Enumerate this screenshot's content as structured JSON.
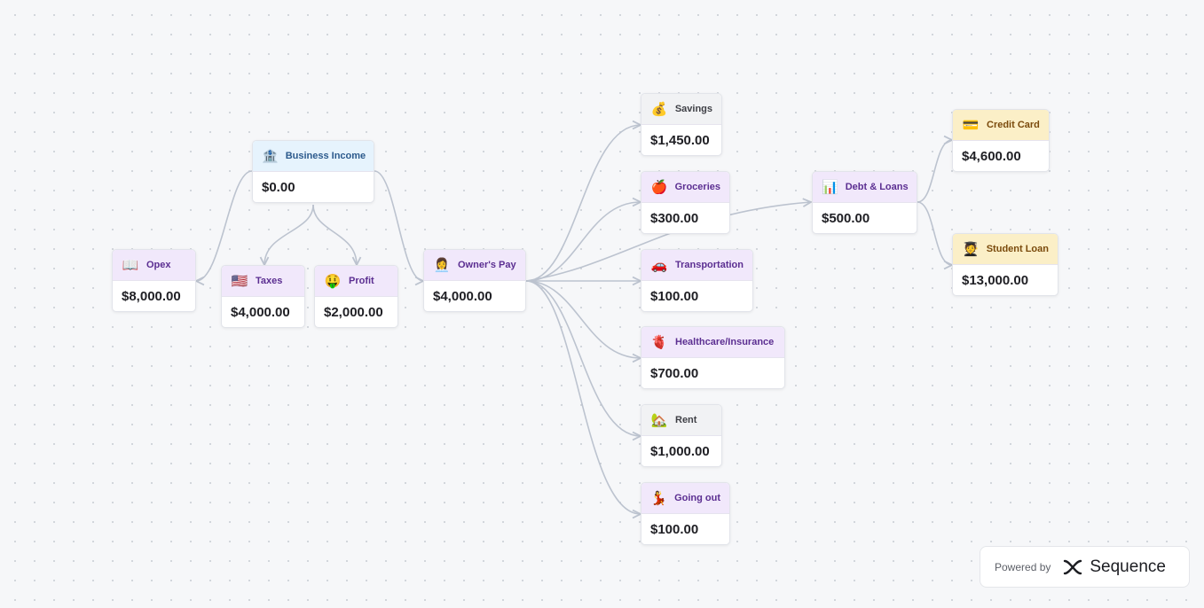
{
  "nodes": {
    "business_income": {
      "icon": "🏦",
      "label": "Business Income",
      "value": "$0.00"
    },
    "opex": {
      "icon": "📖",
      "label": "Opex",
      "value": "$8,000.00"
    },
    "taxes": {
      "icon": "🇺🇸",
      "label": "Taxes",
      "value": "$4,000.00"
    },
    "profit": {
      "icon": "🤑",
      "label": "Profit",
      "value": "$2,000.00"
    },
    "owners_pay": {
      "icon": "👩‍💼",
      "label": "Owner's Pay",
      "value": "$4,000.00"
    },
    "savings": {
      "icon": "💰",
      "label": "Savings",
      "value": "$1,450.00"
    },
    "groceries": {
      "icon": "🍎",
      "label": "Groceries",
      "value": "$300.00"
    },
    "transportation": {
      "icon": "🚗",
      "label": "Transportation",
      "value": "$100.00"
    },
    "healthcare": {
      "icon": "🫀",
      "label": "Healthcare/Insurance",
      "value": "$700.00"
    },
    "rent": {
      "icon": "🏡",
      "label": "Rent",
      "value": "$1,000.00"
    },
    "going_out": {
      "icon": "💃",
      "label": "Going out",
      "value": "$100.00"
    },
    "debt_loans": {
      "icon": "📊",
      "label": "Debt & Loans",
      "value": "$500.00"
    },
    "credit_card": {
      "icon": "💳",
      "label": "Credit Card",
      "value": "$4,600.00"
    },
    "student_loan": {
      "icon": "🧑‍🎓",
      "label": "Student Loan",
      "value": "$13,000.00"
    }
  },
  "badge": {
    "powered_by": "Powered by",
    "brand": "Sequence"
  }
}
